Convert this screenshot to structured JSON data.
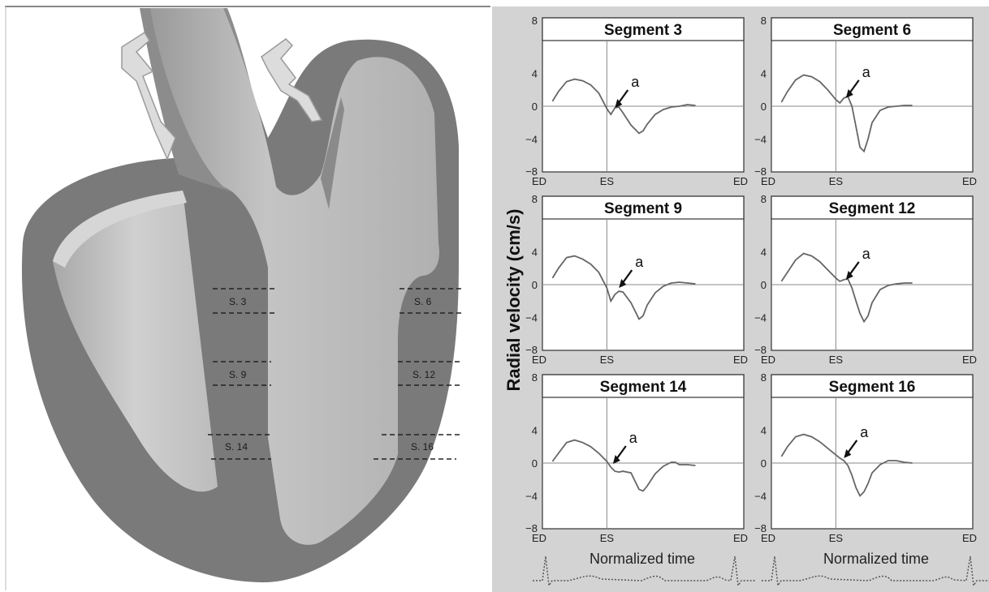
{
  "figure": {
    "ylabel": "Radial velocity (cm/s)",
    "xlabel": "Normalized time",
    "arrow_marker": "a"
  },
  "heart": {
    "labels": [
      "S. 3",
      "S. 6",
      "S. 9",
      "S. 12",
      "S. 14",
      "S. 16"
    ]
  },
  "colors": {
    "panel_bg": "#d3d3d3",
    "plot_bg": "#ffffff",
    "trace": "#666666",
    "heart_dark": "#777777",
    "heart_light": "#c8c8c8"
  },
  "chart_data": [
    {
      "type": "line",
      "title": "Segment 3",
      "x_ticks": [
        "ED",
        "ES",
        "ED"
      ],
      "y_ticks": [
        "8",
        "4",
        "0",
        "−4",
        "−8"
      ],
      "ylim": [
        -8,
        8
      ],
      "arrow_target": [
        0.36,
        -0.2
      ],
      "series": [
        {
          "x": [
            0.05,
            0.08,
            0.12,
            0.16,
            0.2,
            0.24,
            0.28,
            0.32,
            0.34,
            0.36,
            0.38,
            0.4,
            0.44,
            0.48,
            0.5,
            0.52,
            0.56,
            0.6,
            0.64,
            0.68,
            0.72,
            0.76
          ],
          "y": [
            0.6,
            1.8,
            3.0,
            3.3,
            3.1,
            2.6,
            1.6,
            -0.3,
            -1.0,
            -0.2,
            -0.1,
            -0.8,
            -2.3,
            -3.3,
            -3.0,
            -2.2,
            -1.0,
            -0.4,
            -0.1,
            0.0,
            0.2,
            0.1
          ]
        }
      ]
    },
    {
      "type": "line",
      "title": "Segment 6",
      "x_ticks": [
        "ED",
        "ES",
        "ED"
      ],
      "y_ticks": [
        "8",
        "4",
        "0",
        "−4",
        "−8"
      ],
      "ylim": [
        -8,
        8
      ],
      "arrow_target": [
        0.37,
        1.0
      ],
      "series": [
        {
          "x": [
            0.05,
            0.08,
            0.12,
            0.16,
            0.2,
            0.24,
            0.28,
            0.32,
            0.34,
            0.36,
            0.38,
            0.4,
            0.42,
            0.44,
            0.46,
            0.48,
            0.5,
            0.54,
            0.58,
            0.62,
            0.66,
            0.7
          ],
          "y": [
            0.5,
            1.8,
            3.2,
            3.8,
            3.6,
            3.0,
            2.0,
            0.8,
            0.4,
            1.0,
            1.2,
            0.0,
            -2.5,
            -5.0,
            -5.5,
            -4.0,
            -2.0,
            -0.5,
            -0.1,
            0.0,
            0.1,
            0.1
          ]
        }
      ]
    },
    {
      "type": "line",
      "title": "Segment 9",
      "x_ticks": [
        "ED",
        "ES",
        "ED"
      ],
      "y_ticks": [
        "8",
        "4",
        "0",
        "−4",
        "−8"
      ],
      "ylim": [
        -8,
        8
      ],
      "arrow_target": [
        0.38,
        -0.4
      ],
      "series": [
        {
          "x": [
            0.05,
            0.08,
            0.12,
            0.16,
            0.2,
            0.24,
            0.28,
            0.32,
            0.34,
            0.36,
            0.38,
            0.4,
            0.44,
            0.48,
            0.5,
            0.52,
            0.56,
            0.6,
            0.64,
            0.68,
            0.72,
            0.76
          ],
          "y": [
            0.8,
            2.0,
            3.3,
            3.5,
            3.1,
            2.5,
            1.5,
            -0.4,
            -2.0,
            -1.2,
            -0.8,
            -0.9,
            -2.2,
            -4.2,
            -3.8,
            -2.5,
            -1.0,
            -0.2,
            0.2,
            0.3,
            0.2,
            0.1
          ]
        }
      ]
    },
    {
      "type": "line",
      "title": "Segment 12",
      "x_ticks": [
        "ED",
        "ES",
        "ED"
      ],
      "y_ticks": [
        "8",
        "4",
        "0",
        "−4",
        "−8"
      ],
      "ylim": [
        -8,
        8
      ],
      "arrow_target": [
        0.37,
        0.6
      ],
      "series": [
        {
          "x": [
            0.05,
            0.08,
            0.12,
            0.16,
            0.2,
            0.24,
            0.28,
            0.32,
            0.34,
            0.36,
            0.38,
            0.4,
            0.42,
            0.44,
            0.46,
            0.48,
            0.5,
            0.54,
            0.58,
            0.62,
            0.66,
            0.7
          ],
          "y": [
            0.4,
            1.5,
            3.0,
            3.8,
            3.5,
            2.8,
            1.8,
            0.8,
            0.4,
            0.6,
            0.7,
            -0.4,
            -2.0,
            -3.5,
            -4.5,
            -3.8,
            -2.2,
            -0.6,
            -0.1,
            0.1,
            0.2,
            0.2
          ]
        }
      ]
    },
    {
      "type": "line",
      "title": "Segment 14",
      "x_ticks": [
        "ED",
        "ES",
        "ED"
      ],
      "y_ticks": [
        "8",
        "4",
        "0",
        "−4",
        "−8"
      ],
      "ylim": [
        -8,
        8
      ],
      "arrow_target": [
        0.35,
        -0.1
      ],
      "series": [
        {
          "x": [
            0.05,
            0.08,
            0.12,
            0.16,
            0.2,
            0.24,
            0.28,
            0.32,
            0.34,
            0.36,
            0.38,
            0.4,
            0.44,
            0.48,
            0.5,
            0.52,
            0.56,
            0.6,
            0.64,
            0.66,
            0.68,
            0.72,
            0.76
          ],
          "y": [
            0.2,
            1.2,
            2.5,
            2.8,
            2.5,
            2.0,
            1.2,
            0.2,
            -0.5,
            -1.0,
            -1.1,
            -1.0,
            -1.2,
            -3.2,
            -3.4,
            -2.8,
            -1.3,
            -0.4,
            0.1,
            0.1,
            -0.2,
            -0.2,
            -0.3
          ]
        }
      ]
    },
    {
      "type": "line",
      "title": "Segment 16",
      "x_ticks": [
        "ED",
        "ES",
        "ED"
      ],
      "y_ticks": [
        "8",
        "4",
        "0",
        "−4",
        "−8"
      ],
      "ylim": [
        -8,
        8
      ],
      "arrow_target": [
        0.36,
        0.6
      ],
      "series": [
        {
          "x": [
            0.05,
            0.08,
            0.12,
            0.16,
            0.2,
            0.24,
            0.28,
            0.32,
            0.34,
            0.36,
            0.38,
            0.4,
            0.42,
            0.44,
            0.46,
            0.48,
            0.5,
            0.54,
            0.58,
            0.62,
            0.66,
            0.7
          ],
          "y": [
            0.8,
            2.0,
            3.2,
            3.5,
            3.2,
            2.6,
            1.8,
            1.0,
            0.6,
            0.3,
            -0.3,
            -1.5,
            -3.0,
            -4.0,
            -3.5,
            -2.5,
            -1.2,
            -0.2,
            0.3,
            0.3,
            0.1,
            0.0
          ]
        }
      ]
    }
  ]
}
